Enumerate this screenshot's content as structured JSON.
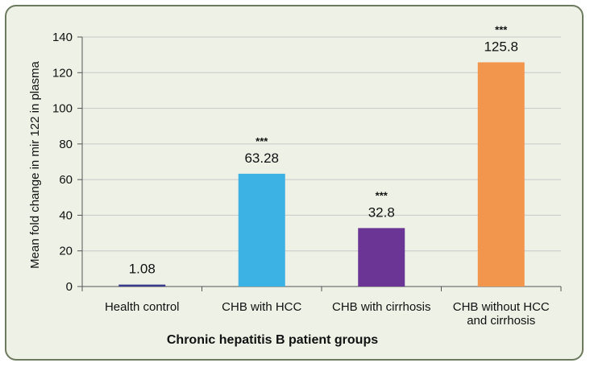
{
  "chart_data": {
    "type": "bar",
    "title": "",
    "xlabel": "Chronic hepatitis B patient groups",
    "ylabel": "Mean fold change in mir 122 in plasma",
    "ylim": [
      0,
      140
    ],
    "yticks": [
      0,
      20,
      40,
      60,
      80,
      100,
      120,
      140
    ],
    "grid": true,
    "legend": "none",
    "categories": [
      "Health control",
      "CHB with HCC",
      "CHB with cirrhosis",
      "CHB without HCC and cirrhosis"
    ],
    "category_lines": [
      [
        "Health control"
      ],
      [
        "CHB with HCC"
      ],
      [
        "CHB with cirrhosis"
      ],
      [
        "CHB without HCC",
        "and cirrhosis"
      ]
    ],
    "values": [
      1.08,
      63.28,
      32.8,
      125.8
    ],
    "value_labels": [
      "1.08",
      "63.28",
      "32.8",
      "125.8"
    ],
    "significance": [
      "",
      "***",
      "***",
      "***"
    ],
    "colors": [
      "#3a3a8c",
      "#3bb1e4",
      "#6b3595",
      "#f2964e"
    ]
  }
}
